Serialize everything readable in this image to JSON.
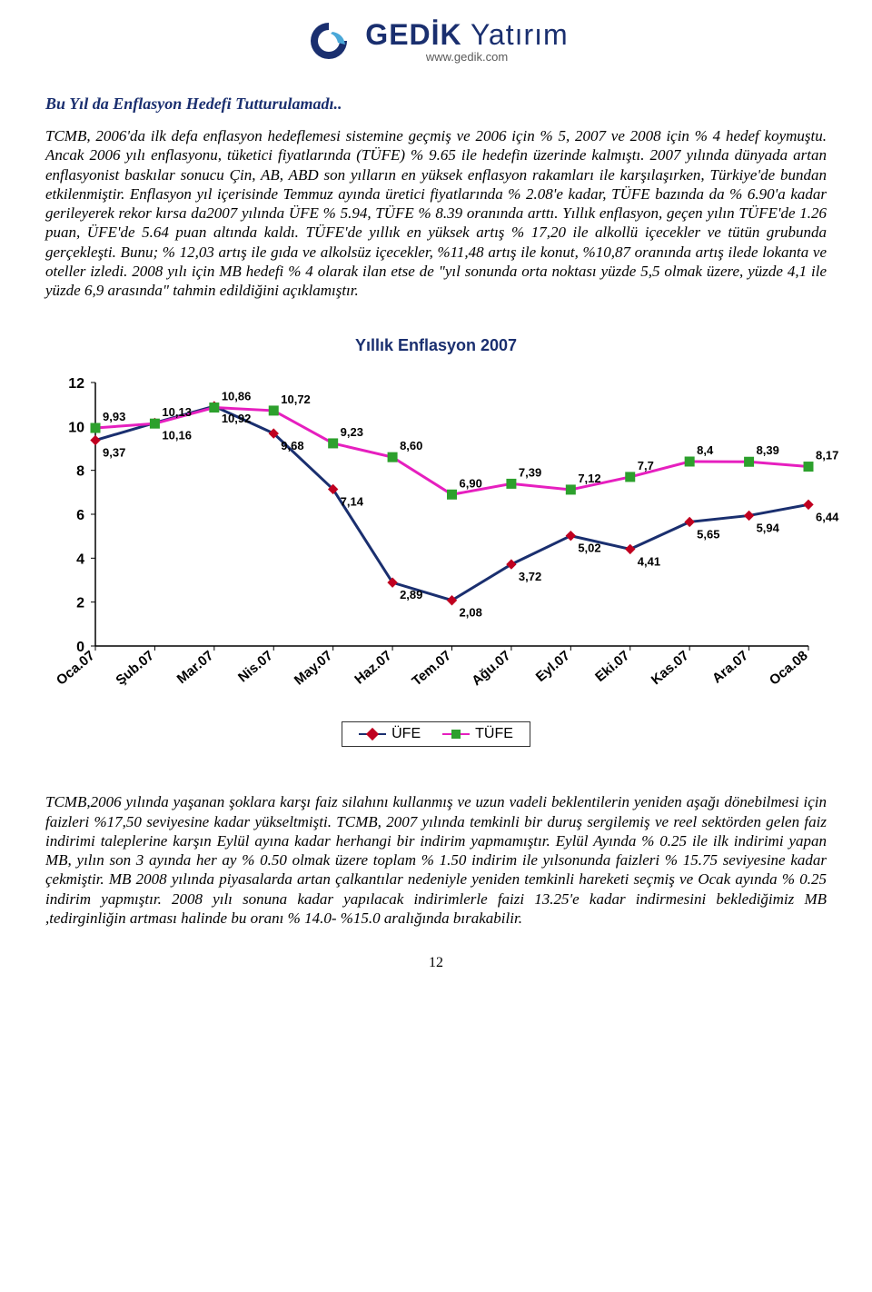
{
  "logo": {
    "brand_bold": "GEDİK",
    "brand_light": " Yatırım",
    "url": "www.gedik.com",
    "mark_color": "#1a2f6f",
    "mark_accent": "#4aa8d8"
  },
  "heading": "Bu Yıl da  Enflasyon Hedefi Tutturulamadı..",
  "para1": "TCMB, 2006'da ilk defa enflasyon hedeflemesi sistemine geçmiş ve 2006 için % 5, 2007 ve 2008 için % 4 hedef koymuştu. Ancak 2006 yılı enflasyonu, tüketici fiyatlarında (TÜFE) % 9.65 ile hedefin üzerinde kalmıştı. 2007 yılında dünyada artan enflasyonist baskılar sonucu Çin, AB, ABD son yılların en yüksek enflasyon rakamları ile karşılaşırken, Türkiye'de bundan etkilenmiştir. Enflasyon yıl içerisinde Temmuz ayında üretici fiyatlarında % 2.08'e kadar, TÜFE bazında da % 6.90'a kadar gerileyerek rekor kırsa da2007 yılında ÜFE % 5.94, TÜFE % 8.39 oranında arttı. Yıllık enflasyon, geçen yılın TÜFE'de 1.26 puan, ÜFE'de 5.64 puan altında kaldı. TÜFE'de yıllık en yüksek artış % 17,20 ile alkollü içecekler ve tütün grubunda gerçekleşti. Bunu; % 12,03 artış ile gıda ve alkolsüz içecekler, %11,48 artış ile konut, %10,87 oranında artış ilede lokanta ve oteller izledi. 2008 yılı için MB hedefi % 4 olarak ilan etse de \"yıl sonunda orta noktası yüzde 5,5 olmak üzere, yüzde 4,1 ile yüzde 6,9 arasında\" tahmin edildiğini açıklamıştır.",
  "chart": {
    "title": "Yıllık Enflasyon 2007",
    "type": "line",
    "categories": [
      "Oca.07",
      "Şub.07",
      "Mar.07",
      "Nis.07",
      "May.07",
      "Haz.07",
      "Tem.07",
      "Ağu.07",
      "Eyl.07",
      "Eki.07",
      "Kas.07",
      "Ara.07",
      "Oca.08"
    ],
    "series": [
      {
        "name": "ÜFE",
        "line_color": "#1a2f6f",
        "marker_color": "#c00020",
        "marker_shape": "diamond",
        "line_width": 3,
        "marker_size": 10,
        "values": [
          9.37,
          10.16,
          10.92,
          9.68,
          7.14,
          2.89,
          2.08,
          3.72,
          5.02,
          4.41,
          5.65,
          5.94,
          6.44
        ],
        "labels": [
          "9,37",
          "10,16",
          "10,92",
          "9,68",
          "7,14",
          "2,89",
          "2,08",
          "3,72",
          "5,02",
          "4,41",
          "5,65",
          "5,94",
          "6,44"
        ]
      },
      {
        "name": "TÜFE",
        "line_color": "#e61fbf",
        "marker_color": "#2da02d",
        "marker_shape": "square",
        "line_width": 3,
        "marker_size": 10,
        "values": [
          9.93,
          10.13,
          10.86,
          10.72,
          9.23,
          8.6,
          6.9,
          7.39,
          7.12,
          7.7,
          8.4,
          8.39,
          8.17
        ],
        "labels": [
          "9,93",
          "10,13",
          "10,86",
          "10,72",
          "9,23",
          "8,60",
          "6,90",
          "7,39",
          "7,12",
          "7,7",
          "8,4",
          "8,39",
          "8,17"
        ]
      }
    ],
    "ylim": [
      0,
      12
    ],
    "ytick_step": 2,
    "yticks": [
      "0",
      "2",
      "4",
      "6",
      "8",
      "10",
      "12"
    ],
    "background_color": "#ffffff",
    "axis_color": "#000000",
    "label_fontsize": 13,
    "axis_fontsize": 16
  },
  "legend": {
    "ufe": "ÜFE",
    "tufe": "TÜFE"
  },
  "para2": "TCMB,2006 yılında yaşanan şoklara karşı faiz silahını kullanmış ve uzun vadeli beklentilerin yeniden aşağı dönebilmesi için faizleri %17,50 seviyesine kadar yükseltmişti. TCMB, 2007 yılında temkinli bir duruş sergilemiş ve reel sektörden gelen faiz indirimi taleplerine karşın Eylül ayına kadar herhangi bir indirim yapmamıştır. Eylül Ayında % 0.25 ile ilk indirimi yapan MB, yılın son 3 ayında her ay % 0.50 olmak üzere toplam % 1.50 indirim ile yılsonunda faizleri % 15.75 seviyesine kadar çekmiştir. MB 2008 yılında piyasalarda artan çalkantılar nedeniyle yeniden temkinli hareketi seçmiş ve Ocak ayında % 0.25 indirim yapmıştır. 2008 yılı sonuna kadar yapılacak indirimlerle faizi 13.25'e kadar indirmesini beklediğimiz MB ,tedirginliğin artması halinde bu oranı % 14.0- %15.0 aralığında bırakabilir.",
  "page_number": "12"
}
